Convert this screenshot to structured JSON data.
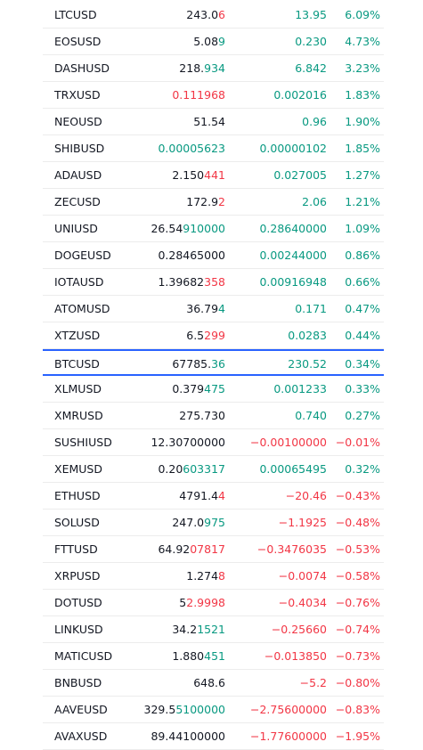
{
  "colors": {
    "up": "#089981",
    "down": "#f23645",
    "text": "#131722",
    "highlight_border": "#2962ff"
  },
  "rows": [
    {
      "symbol": "LTCUSD",
      "last_base": "243.0",
      "last_tail": "6",
      "last_tail_dir": "down",
      "change": "13.95",
      "change_pct": "6.09%",
      "dir": "up"
    },
    {
      "symbol": "EOSUSD",
      "last_base": "5.08",
      "last_tail": "9",
      "last_tail_dir": "up",
      "change": "0.230",
      "change_pct": "4.73%",
      "dir": "up"
    },
    {
      "symbol": "DASHUSD",
      "last_base": "218.",
      "last_tail": "934",
      "last_tail_dir": "up",
      "change": "6.842",
      "change_pct": "3.23%",
      "dir": "up"
    },
    {
      "symbol": "TRXUSD",
      "last_base": "",
      "last_tail": "0.111968",
      "last_tail_dir": "down",
      "change": "0.002016",
      "change_pct": "1.83%",
      "dir": "up"
    },
    {
      "symbol": "NEOUSD",
      "last_base": "51.54",
      "last_tail": "",
      "last_tail_dir": "neutral",
      "change": "0.96",
      "change_pct": "1.90%",
      "dir": "up"
    },
    {
      "symbol": "SHIBUSD",
      "last_base": "",
      "last_tail": "0.00005623",
      "last_tail_dir": "up",
      "change": "0.00000102",
      "change_pct": "1.85%",
      "dir": "up"
    },
    {
      "symbol": "ADAUSD",
      "last_base": "2.150",
      "last_tail": "441",
      "last_tail_dir": "down",
      "change": "0.027005",
      "change_pct": "1.27%",
      "dir": "up"
    },
    {
      "symbol": "ZECUSD",
      "last_base": "172.9",
      "last_tail": "2",
      "last_tail_dir": "down",
      "change": "2.06",
      "change_pct": "1.21%",
      "dir": "up"
    },
    {
      "symbol": "UNIUSD",
      "last_base": "26.54",
      "last_tail": "910000",
      "last_tail_dir": "up",
      "change": "0.28640000",
      "change_pct": "1.09%",
      "dir": "up"
    },
    {
      "symbol": "DOGEUSD",
      "last_base": "0.28465000",
      "last_tail": "",
      "last_tail_dir": "neutral",
      "change": "0.00244000",
      "change_pct": "0.86%",
      "dir": "up"
    },
    {
      "symbol": "IOTAUSD",
      "last_base": "1.39682",
      "last_tail": "358",
      "last_tail_dir": "down",
      "change": "0.00916948",
      "change_pct": "0.66%",
      "dir": "up"
    },
    {
      "symbol": "ATOMUSD",
      "last_base": "36.79",
      "last_tail": "4",
      "last_tail_dir": "up",
      "change": "0.171",
      "change_pct": "0.47%",
      "dir": "up"
    },
    {
      "symbol": "XTZUSD",
      "last_base": "6.5",
      "last_tail": "299",
      "last_tail_dir": "down",
      "change": "0.0283",
      "change_pct": "0.44%",
      "dir": "up"
    },
    {
      "symbol": "BTCUSD",
      "last_base": "67785.",
      "last_tail": "36",
      "last_tail_dir": "up",
      "change": "230.52",
      "change_pct": "0.34%",
      "dir": "up",
      "highlight": true
    },
    {
      "symbol": "XLMUSD",
      "last_base": "0.379",
      "last_tail": "475",
      "last_tail_dir": "up",
      "change": "0.001233",
      "change_pct": "0.33%",
      "dir": "up"
    },
    {
      "symbol": "XMRUSD",
      "last_base": "275.730",
      "last_tail": "",
      "last_tail_dir": "neutral",
      "change": "0.740",
      "change_pct": "0.27%",
      "dir": "up"
    },
    {
      "symbol": "SUSHIUSD",
      "last_base": "12.30700000",
      "last_tail": "",
      "last_tail_dir": "neutral",
      "change": "−0.00100000",
      "change_pct": "−0.01%",
      "dir": "down"
    },
    {
      "symbol": "XEMUSD",
      "last_base": "0.20",
      "last_tail": "603317",
      "last_tail_dir": "up",
      "change": "0.00065495",
      "change_pct": "0.32%",
      "dir": "up"
    },
    {
      "symbol": "ETHUSD",
      "last_base": "4791.4",
      "last_tail": "4",
      "last_tail_dir": "down",
      "change": "−20.46",
      "change_pct": "−0.43%",
      "dir": "down"
    },
    {
      "symbol": "SOLUSD",
      "last_base": "247.0",
      "last_tail": "975",
      "last_tail_dir": "up",
      "change": "−1.1925",
      "change_pct": "−0.48%",
      "dir": "down"
    },
    {
      "symbol": "FTTUSD",
      "last_base": "64.92",
      "last_tail": "07817",
      "last_tail_dir": "down",
      "change": "−0.3476035",
      "change_pct": "−0.53%",
      "dir": "down"
    },
    {
      "symbol": "XRPUSD",
      "last_base": "1.274",
      "last_tail": "8",
      "last_tail_dir": "down",
      "change": "−0.0074",
      "change_pct": "−0.58%",
      "dir": "down"
    },
    {
      "symbol": "DOTUSD",
      "last_base": "5",
      "last_tail": "2.9998",
      "last_tail_dir": "down",
      "change": "−0.4034",
      "change_pct": "−0.76%",
      "dir": "down"
    },
    {
      "symbol": "LINKUSD",
      "last_base": "34.2",
      "last_tail": "1521",
      "last_tail_dir": "up",
      "change": "−0.25660",
      "change_pct": "−0.74%",
      "dir": "down"
    },
    {
      "symbol": "MATICUSD",
      "last_base": "1.880",
      "last_tail": "451",
      "last_tail_dir": "up",
      "change": "−0.013850",
      "change_pct": "−0.73%",
      "dir": "down"
    },
    {
      "symbol": "BNBUSD",
      "last_base": "648.6",
      "last_tail": "",
      "last_tail_dir": "neutral",
      "change": "−5.2",
      "change_pct": "−0.80%",
      "dir": "down"
    },
    {
      "symbol": "AAVEUSD",
      "last_base": "329.5",
      "last_tail": "5100000",
      "last_tail_dir": "up",
      "change": "−2.75600000",
      "change_pct": "−0.83%",
      "dir": "down"
    },
    {
      "symbol": "AVAXUSD",
      "last_base": "89.44100000",
      "last_tail": "",
      "last_tail_dir": "neutral",
      "change": "−1.77600000",
      "change_pct": "−1.95%",
      "dir": "down"
    }
  ]
}
